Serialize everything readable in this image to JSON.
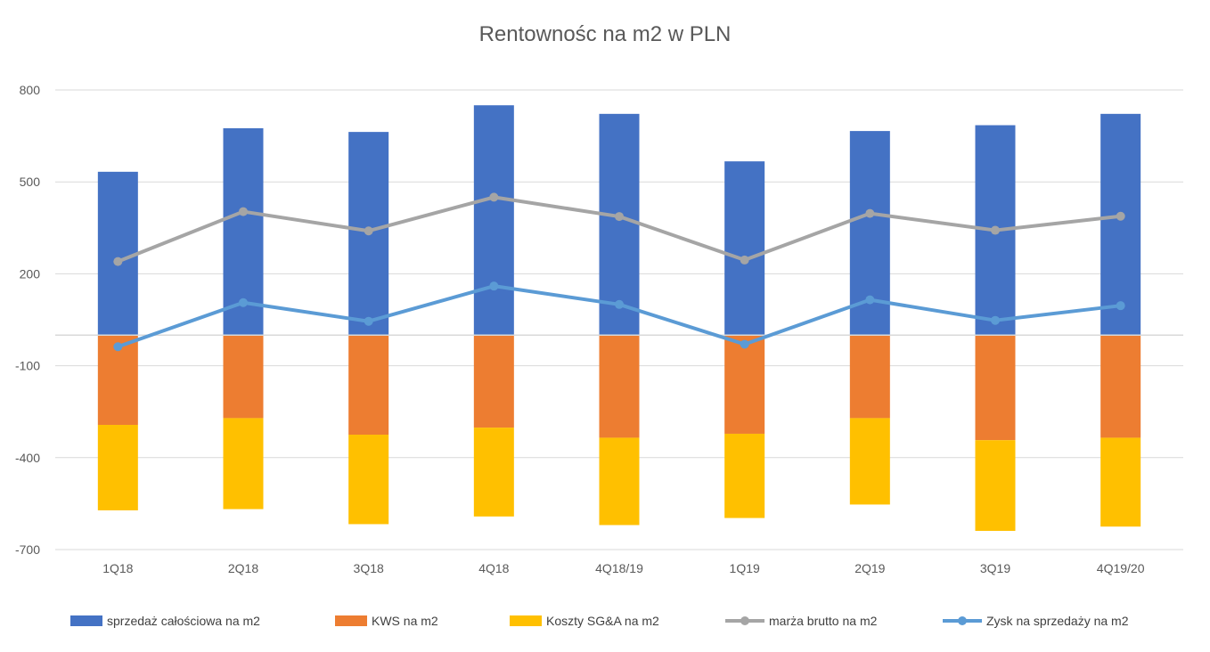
{
  "chart_data": {
    "type": "bar",
    "title": "Rentownośc na m2 w PLN",
    "categories": [
      "1Q18",
      "2Q18",
      "3Q18",
      "4Q18",
      "4Q18/19",
      "1Q19",
      "2Q19",
      "3Q19",
      "4Q19/20"
    ],
    "y_ticks": [
      "800",
      "500",
      "200",
      "-100",
      "-400",
      "-700"
    ],
    "ylim": [
      -700,
      800
    ],
    "grid": true,
    "legend_position": "bottom",
    "stacked": true,
    "series": [
      {
        "name": "sprzedaż całościowa na m2",
        "type": "bar",
        "color": "#4472C4",
        "values": [
          533,
          675,
          663,
          750,
          722,
          567,
          666,
          685,
          722
        ]
      },
      {
        "name": "KWS na m2",
        "type": "bar",
        "color": "#ED7D31",
        "values": [
          -293,
          -271,
          -325,
          -302,
          -335,
          -322,
          -271,
          -343,
          -335
        ]
      },
      {
        "name": "Koszty SG&A na m2",
        "type": "bar",
        "color": "#FFC000",
        "values": [
          -279,
          -297,
          -292,
          -290,
          -285,
          -275,
          -282,
          -296,
          -290
        ]
      },
      {
        "name": "marża brutto na m2",
        "type": "line",
        "color": "#A5A5A5",
        "values": [
          240,
          403,
          340,
          450,
          387,
          245,
          397,
          342,
          388
        ]
      },
      {
        "name": "Zysk na sprzedaży na m2",
        "type": "line",
        "color": "#5B9BD5",
        "values": [
          -38,
          106,
          45,
          160,
          100,
          -30,
          115,
          48,
          96
        ]
      }
    ]
  }
}
